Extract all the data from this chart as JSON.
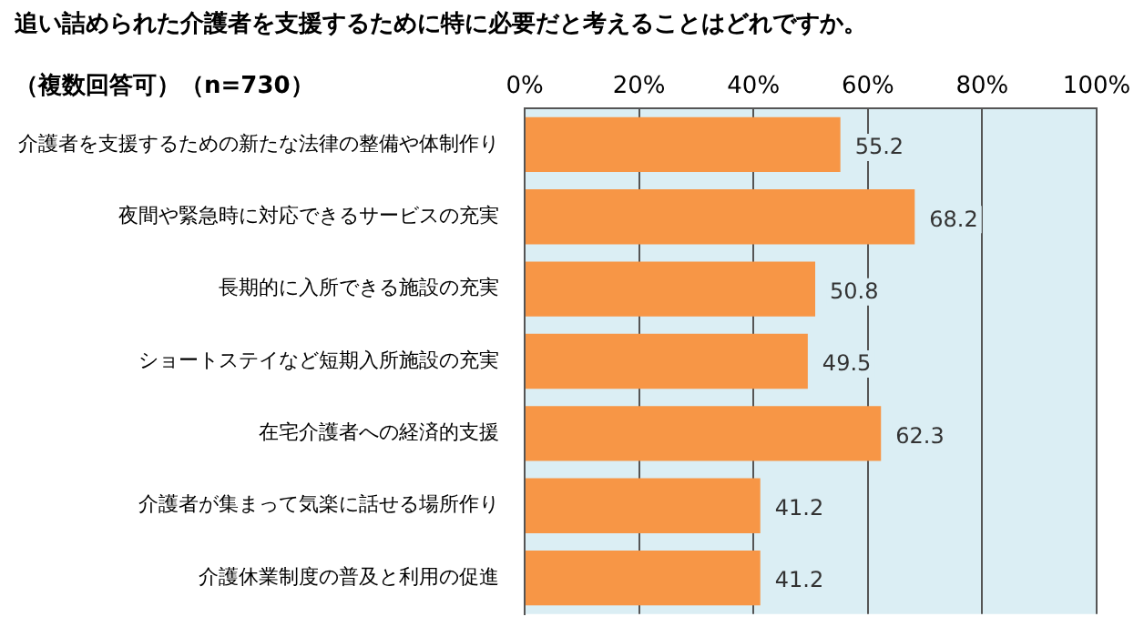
{
  "chart_data": {
    "type": "bar",
    "orientation": "horizontal",
    "title": "追い詰められた介護者を支援するために特に必要だと考えることはどれですか。",
    "subtitle": "（複数回答可）（n=730）",
    "categories": [
      "介護者を支援するための新たな法律の整備や体制作り",
      "夜間や緊急時に対応できるサービスの充実",
      "長期的に入所できる施設の充実",
      "ショートステイなど短期入所施設の充実",
      "在宅介護者への経済的支援",
      "介護者が集まって気楽に話せる場所作り",
      "介護休業制度の普及と利用の促進"
    ],
    "values": [
      55.2,
      68.2,
      50.8,
      49.5,
      62.3,
      41.2,
      41.2
    ],
    "color": "#f79646",
    "xlim": [
      0,
      100
    ],
    "xticks": [
      {
        "value": 0,
        "label": "0%"
      },
      {
        "value": 20,
        "label": "20%"
      },
      {
        "value": 40,
        "label": "40%"
      },
      {
        "value": 60,
        "label": "60%"
      },
      {
        "value": 80,
        "label": "80%"
      },
      {
        "value": 100,
        "label": "100%"
      }
    ],
    "grid": "x",
    "data_labels": true
  }
}
